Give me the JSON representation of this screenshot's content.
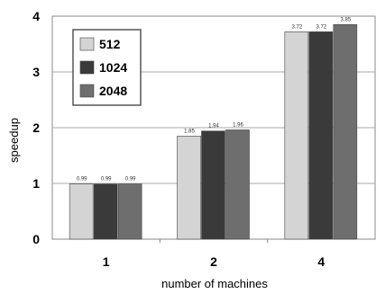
{
  "chart_data": {
    "type": "bar",
    "title": "",
    "xlabel": "number of machines",
    "ylabel": "speedup",
    "categories": [
      "1",
      "2",
      "4"
    ],
    "series": [
      {
        "name": "512",
        "values": [
          0.99,
          1.85,
          3.72
        ],
        "labels": [
          "0.99",
          "1.85",
          "3.72"
        ],
        "color": "#d4d4d4"
      },
      {
        "name": "1024",
        "values": [
          0.99,
          1.94,
          3.72
        ],
        "labels": [
          "0.99",
          "1.94",
          "3.72"
        ],
        "color": "#3a3a3a"
      },
      {
        "name": "2048",
        "values": [
          0.99,
          1.96,
          3.85
        ],
        "labels": [
          "0.99",
          "1.96",
          "3.85"
        ],
        "color": "#6e6e6e"
      }
    ],
    "ylim": [
      0,
      4
    ],
    "yticks": [
      "0",
      "1",
      "2",
      "3",
      "4"
    ],
    "grid": "horizontal",
    "legend_position": "top-left"
  }
}
